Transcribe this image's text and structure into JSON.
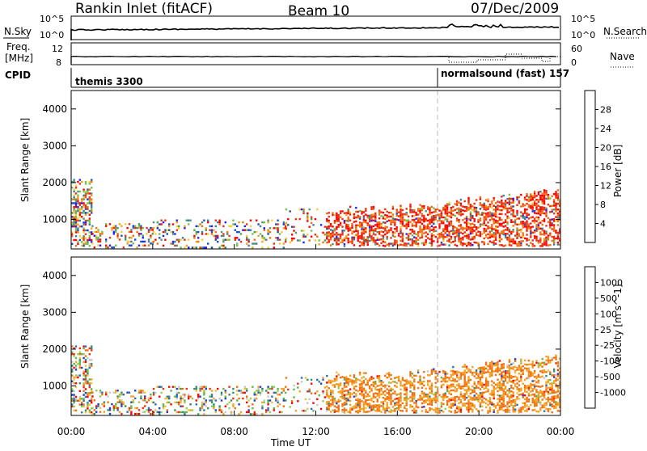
{
  "header": {
    "title": "Rankin Inlet (fitACF)",
    "beam": "Beam 10",
    "date": "07/Dec/2009"
  },
  "strip_labels": {
    "nsky": "N.Sky",
    "nsky_ticks": [
      "10^5",
      "10^0"
    ],
    "nsearch": "N.Search",
    "nsearch_ticks": [
      "10^5",
      "10^0"
    ],
    "freq": "Freq.",
    "freq_unit": "[MHz]",
    "freq_ticks": [
      "12",
      "8"
    ],
    "nave": "Nave",
    "nave_ticks": [
      "60",
      "0"
    ],
    "cpid": "CPID",
    "modes": [
      {
        "name": "themis 3300",
        "start_hour": 0
      },
      {
        "name": "normalsound (fast) 157",
        "start_hour": 18
      }
    ]
  },
  "chart_data": [
    {
      "type": "heatmap",
      "title": "",
      "xlabel": "",
      "ylabel": "Slant Range [km]",
      "x_ticks": [
        "00:00",
        "04:00",
        "08:00",
        "12:00",
        "16:00",
        "20:00",
        "00:00"
      ],
      "x_hours": [
        0,
        4,
        8,
        12,
        16,
        20,
        24
      ],
      "xlim": [
        0,
        24
      ],
      "y_ticks": [
        1000,
        2000,
        3000,
        4000
      ],
      "ylim": [
        200,
        4500
      ],
      "colorbar": {
        "label": "Power [dB]",
        "ticks": [
          "4",
          "8",
          "12",
          "16",
          "20",
          "24",
          "28"
        ],
        "colors": [
          "#2020ff",
          "#2050b0",
          "#3a7fa0",
          "#4a9a6a",
          "#72c24a",
          "#f0d030",
          "#f5a020",
          "#f07010",
          "#ee3010",
          "#ff0000"
        ]
      }
    },
    {
      "type": "heatmap",
      "title": "",
      "xlabel": "Time UT",
      "ylabel": "Slant Range [km]",
      "x_ticks": [
        "00:00",
        "04:00",
        "08:00",
        "12:00",
        "16:00",
        "20:00",
        "00:00"
      ],
      "x_hours": [
        0,
        4,
        8,
        12,
        16,
        20,
        24
      ],
      "xlim": [
        0,
        24
      ],
      "y_ticks": [
        1000,
        2000,
        3000,
        4000
      ],
      "ylim": [
        200,
        4500
      ],
      "colorbar": {
        "label": "Velocity [m s^-1]",
        "ticks": [
          "1000",
          "500",
          "100",
          "25",
          "-25",
          "-100",
          "-500",
          "-1000"
        ],
        "colors": [
          "#2040c0",
          "#2c6cb0",
          "#3a8a70",
          "#5cb84a",
          "#90d050",
          "#c8c8c8",
          "#f0c040",
          "#f5a020",
          "#f07010",
          "#ee3010",
          "#ff0000"
        ]
      }
    }
  ]
}
